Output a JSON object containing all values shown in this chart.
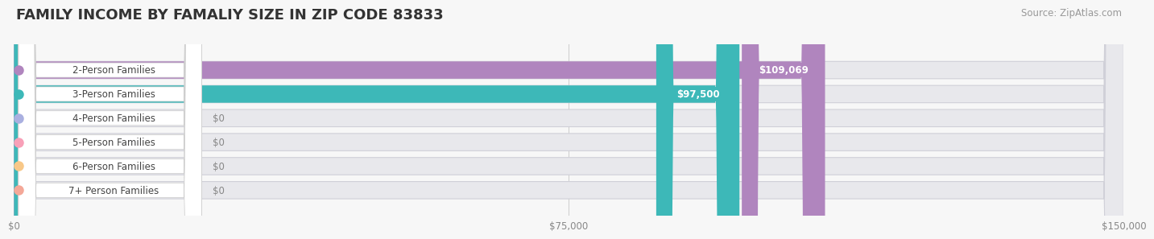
{
  "title": "FAMILY INCOME BY FAMALIY SIZE IN ZIP CODE 83833",
  "source": "Source: ZipAtlas.com",
  "categories": [
    "2-Person Families",
    "3-Person Families",
    "4-Person Families",
    "5-Person Families",
    "6-Person Families",
    "7+ Person Families"
  ],
  "values": [
    109069,
    97500,
    0,
    0,
    0,
    0
  ],
  "bar_colors": [
    "#b085be",
    "#3db8b8",
    "#aab0e0",
    "#f8a0b8",
    "#f8c888",
    "#f4a898"
  ],
  "label_dot_colors": [
    "#b085be",
    "#3db8b8",
    "#aab0e0",
    "#f8a0b8",
    "#f8c888",
    "#f4a898"
  ],
  "value_badge_colors": [
    "#b085be",
    "#3db8b8",
    "#aab0e0",
    "#f8a0b8",
    "#f8c888",
    "#f4a898"
  ],
  "value_labels": [
    "$109,069",
    "$97,500",
    "$0",
    "$0",
    "$0",
    "$0"
  ],
  "xlim": [
    0,
    150000
  ],
  "xticks": [
    0,
    75000,
    150000
  ],
  "xticklabels": [
    "$0",
    "$75,000",
    "$150,000"
  ],
  "background_color": "#f7f7f7",
  "bar_bg_color": "#e8e8ec",
  "title_fontsize": 13,
  "source_fontsize": 8.5,
  "bar_height": 0.72,
  "bar_label_fontsize": 8.5,
  "value_label_fontsize": 8.5
}
